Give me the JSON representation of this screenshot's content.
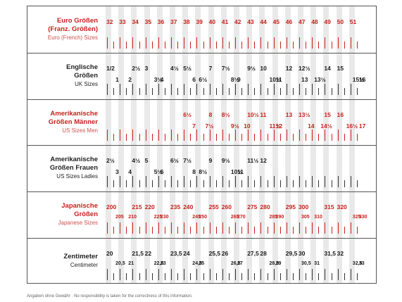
{
  "rows": [
    {
      "id": "euro",
      "red": true,
      "label": [
        "Euro Größen",
        "(Franz. Größen)"
      ],
      "sub": "Euro (French) Sizes",
      "top": [
        [
          "32",
          0
        ],
        [
          "33",
          1
        ],
        [
          "34",
          2
        ],
        [
          "35",
          3
        ],
        [
          "36",
          4
        ],
        [
          "37",
          5
        ],
        [
          "38",
          6
        ],
        [
          "39",
          7
        ],
        [
          "40",
          8
        ],
        [
          "41",
          9
        ],
        [
          "42",
          10
        ],
        [
          "43",
          11
        ],
        [
          "44",
          12
        ],
        [
          "45",
          13
        ],
        [
          "46",
          14
        ],
        [
          "47",
          15
        ],
        [
          "48",
          16
        ],
        [
          "49",
          17
        ],
        [
          "50",
          18
        ],
        [
          "51",
          19
        ]
      ],
      "bottom": []
    },
    {
      "id": "uk",
      "red": false,
      "label": [
        "Englische",
        "Größen"
      ],
      "sub": "UK Sizes",
      "top": [
        [
          "1/2",
          0
        ],
        [
          "2½",
          2
        ],
        [
          "3",
          3
        ],
        [
          "4½",
          5
        ],
        [
          "5½",
          6
        ],
        [
          "7",
          8
        ],
        [
          "7½",
          9
        ],
        [
          "9½",
          11
        ],
        [
          "10",
          12
        ],
        [
          "12",
          14
        ],
        [
          "12½",
          15
        ],
        [
          "14",
          17
        ],
        [
          "15",
          18
        ]
      ],
      "bottom": [
        [
          "1",
          0.5
        ],
        [
          "2",
          1.5
        ],
        [
          "3½",
          3.5
        ],
        [
          "4",
          4
        ],
        [
          "6",
          6.5
        ],
        [
          "6½",
          7
        ],
        [
          "8½",
          9.5
        ],
        [
          "9",
          10
        ],
        [
          "10½",
          12.5
        ],
        [
          "11",
          13
        ],
        [
          "13",
          15
        ],
        [
          "13½",
          16
        ],
        [
          "15½",
          19
        ],
        [
          "16",
          19.5
        ]
      ]
    },
    {
      "id": "us-men",
      "red": true,
      "label": [
        "Amerikanische",
        "Größen Männer"
      ],
      "sub": "US Sizes Men",
      "top": [
        [
          "6½",
          6
        ],
        [
          "8",
          8
        ],
        [
          "8½",
          9
        ],
        [
          "10½",
          11
        ],
        [
          "11",
          12
        ],
        [
          "13",
          14
        ],
        [
          "13½",
          15
        ],
        [
          "15",
          17
        ],
        [
          "16",
          18
        ]
      ],
      "bottom": [
        [
          "7",
          6.5
        ],
        [
          "7½",
          7.5
        ],
        [
          "9½",
          9.5
        ],
        [
          "10",
          10.5
        ],
        [
          "11½",
          12.5
        ],
        [
          "12",
          13
        ],
        [
          "14",
          15.5
        ],
        [
          "14½",
          16.5
        ],
        [
          "16½",
          18.5
        ],
        [
          "17",
          19.5
        ]
      ]
    },
    {
      "id": "us-ladies",
      "red": false,
      "label": [
        "Amerikanische",
        "Größen Frauen"
      ],
      "sub": "US Sizes Ladies",
      "top": [
        [
          "2½",
          0
        ],
        [
          "4½",
          2
        ],
        [
          "5",
          3
        ],
        [
          "6½",
          5
        ],
        [
          "7½",
          6
        ],
        [
          "9",
          8
        ],
        [
          "9½",
          9
        ],
        [
          "11½",
          11
        ],
        [
          "12",
          12
        ]
      ],
      "bottom": [
        [
          "3",
          0.5
        ],
        [
          "4",
          1.5
        ],
        [
          "5½",
          3.5
        ],
        [
          "6",
          4
        ],
        [
          "8",
          6.5
        ],
        [
          "8½",
          7
        ],
        [
          "10½",
          9.5
        ],
        [
          "11",
          10
        ]
      ]
    },
    {
      "id": "japan",
      "red": true,
      "label": [
        "Japanische",
        "Größen"
      ],
      "sub": "Japanese Sizes",
      "top": [
        [
          "200",
          0
        ],
        [
          "215",
          2
        ],
        [
          "220",
          3
        ],
        [
          "235",
          5
        ],
        [
          "240",
          6
        ],
        [
          "255",
          8
        ],
        [
          "260",
          9
        ],
        [
          "275",
          11
        ],
        [
          "280",
          12
        ],
        [
          "295",
          14
        ],
        [
          "300",
          15
        ],
        [
          "315",
          17
        ],
        [
          "320",
          18
        ]
      ],
      "bottom": [
        [
          "205",
          0.5
        ],
        [
          "210",
          1.5
        ],
        [
          "225",
          3.5
        ],
        [
          "230",
          4
        ],
        [
          "245",
          6.5
        ],
        [
          "250",
          7
        ],
        [
          "265",
          9.5
        ],
        [
          "270",
          10
        ],
        [
          "285",
          12.5
        ],
        [
          "290",
          13
        ],
        [
          "305",
          15
        ],
        [
          "310",
          16
        ],
        [
          "325",
          19
        ],
        [
          "330",
          19.5
        ]
      ]
    },
    {
      "id": "cm",
      "red": false,
      "label": [
        "Zentimeter"
      ],
      "sub": "Centimeter",
      "top": [
        [
          "20",
          0
        ],
        [
          "21,5",
          2
        ],
        [
          "22",
          3
        ],
        [
          "23,5",
          5
        ],
        [
          "24",
          6
        ],
        [
          "25,5",
          8
        ],
        [
          "26",
          9
        ],
        [
          "27,5",
          11
        ],
        [
          "28",
          12
        ],
        [
          "29,5",
          14
        ],
        [
          "30",
          15
        ],
        [
          "31,5",
          17
        ],
        [
          "32",
          18
        ]
      ],
      "bottom": [
        [
          "20,5",
          0.5
        ],
        [
          "21",
          1.5
        ],
        [
          "22,5",
          3.5
        ],
        [
          "23",
          4
        ],
        [
          "24,5",
          6.5
        ],
        [
          "25",
          7
        ],
        [
          "26,5",
          9.5
        ],
        [
          "27",
          10
        ],
        [
          "28,5",
          12.5
        ],
        [
          "29",
          13
        ],
        [
          "30,5",
          15
        ],
        [
          "31",
          16
        ],
        [
          "32,5",
          19
        ],
        [
          "33",
          19.5
        ]
      ]
    }
  ],
  "footer": {
    "main": "Angaben ohne Gewähr",
    "sep": " · ",
    "en": "No responsibility is taken for the correctness of this information."
  },
  "colors": {
    "red": "#c8201c",
    "stripe": "#e9e9e9",
    "line": "#555555",
    "tick": "#333333"
  }
}
